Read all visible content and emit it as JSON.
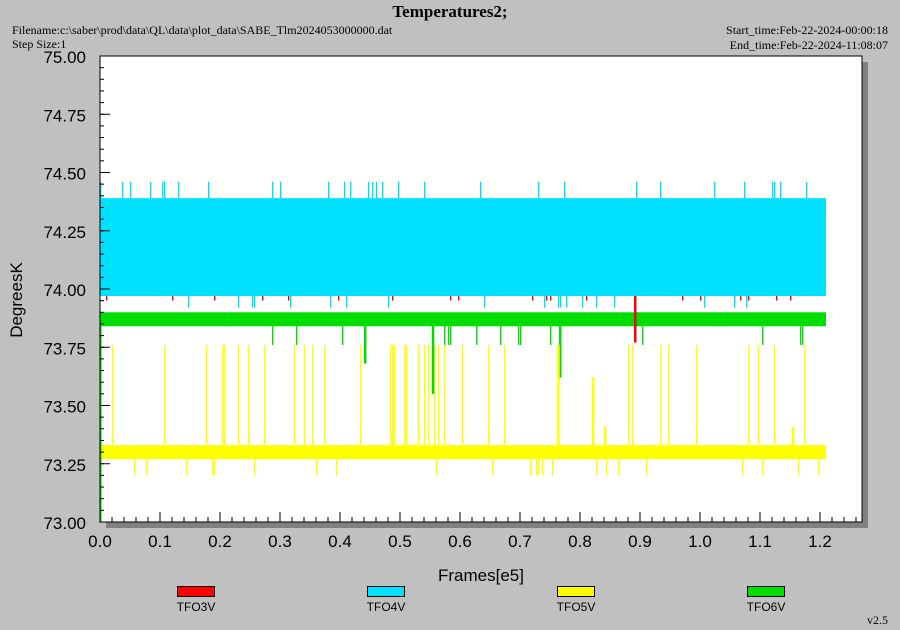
{
  "header": {
    "title": "Temperatures2;",
    "filename": "Filename:c:\\saber\\prod\\data\\QL\\data\\plot_data\\SABE_Tlm2024053000000.dat",
    "step_size": "Step Size:1",
    "start_time": "Start_time:Feb-22-2024-00:00:18",
    "end_time": "End_time:Feb-22-2024-11:08:07",
    "version": "v2.5"
  },
  "colors": {
    "TFO3V": "#ff0000",
    "TFO4V": "#00e0ff",
    "TFO5V": "#ffff00",
    "TFO6V": "#00dd00"
  },
  "chart_data": {
    "type": "line",
    "title": "Temperatures2;",
    "xlabel": "Frames[e5]",
    "ylabel": "DegreesK",
    "xlim": [
      0.0,
      1.27
    ],
    "ylim": [
      73.0,
      75.0
    ],
    "x_ticks": [
      "0.0",
      "0.1",
      "0.2",
      "0.3",
      "0.4",
      "0.5",
      "0.6",
      "0.7",
      "0.8",
      "0.9",
      "1.0",
      "1.1",
      "1.2"
    ],
    "y_ticks": [
      "73.00",
      "73.25",
      "73.50",
      "73.75",
      "74.00",
      "74.25",
      "74.50",
      "74.75",
      "75.00"
    ],
    "grid": false,
    "legend_position": "bottom",
    "series": [
      {
        "name": "TFO3V",
        "x_range": [
          0.0,
          1.21
        ],
        "base": 74.0,
        "band": [
          73.97,
          74.03
        ],
        "spikes_up": [
          74.1
        ],
        "spikes_down": [
          73.95,
          73.77
        ]
      },
      {
        "name": "TFO4V",
        "x_range": [
          0.0,
          1.21
        ],
        "base": 74.2,
        "band": [
          73.97,
          74.39
        ],
        "spikes_up": [
          74.46
        ],
        "spikes_down": [
          73.92
        ]
      },
      {
        "name": "TFO5V",
        "x_range": [
          0.0,
          1.21
        ],
        "base": 73.3,
        "band": [
          73.27,
          73.33
        ],
        "spikes_up": [
          73.76,
          73.62,
          73.41
        ],
        "spikes_down": [
          73.2
        ]
      },
      {
        "name": "TFO6V",
        "x_range": [
          0.0,
          1.21
        ],
        "base": 73.86,
        "band": [
          73.84,
          73.9
        ],
        "spikes_up": [],
        "spikes_down": [
          73.76,
          73.68,
          73.62,
          73.55
        ]
      }
    ]
  },
  "legend": [
    {
      "name": "TFO3V",
      "color": "#ff0000"
    },
    {
      "name": "TFO4V",
      "color": "#00e0ff"
    },
    {
      "name": "TFO5V",
      "color": "#ffff00"
    },
    {
      "name": "TFO6V",
      "color": "#00dd00"
    }
  ]
}
